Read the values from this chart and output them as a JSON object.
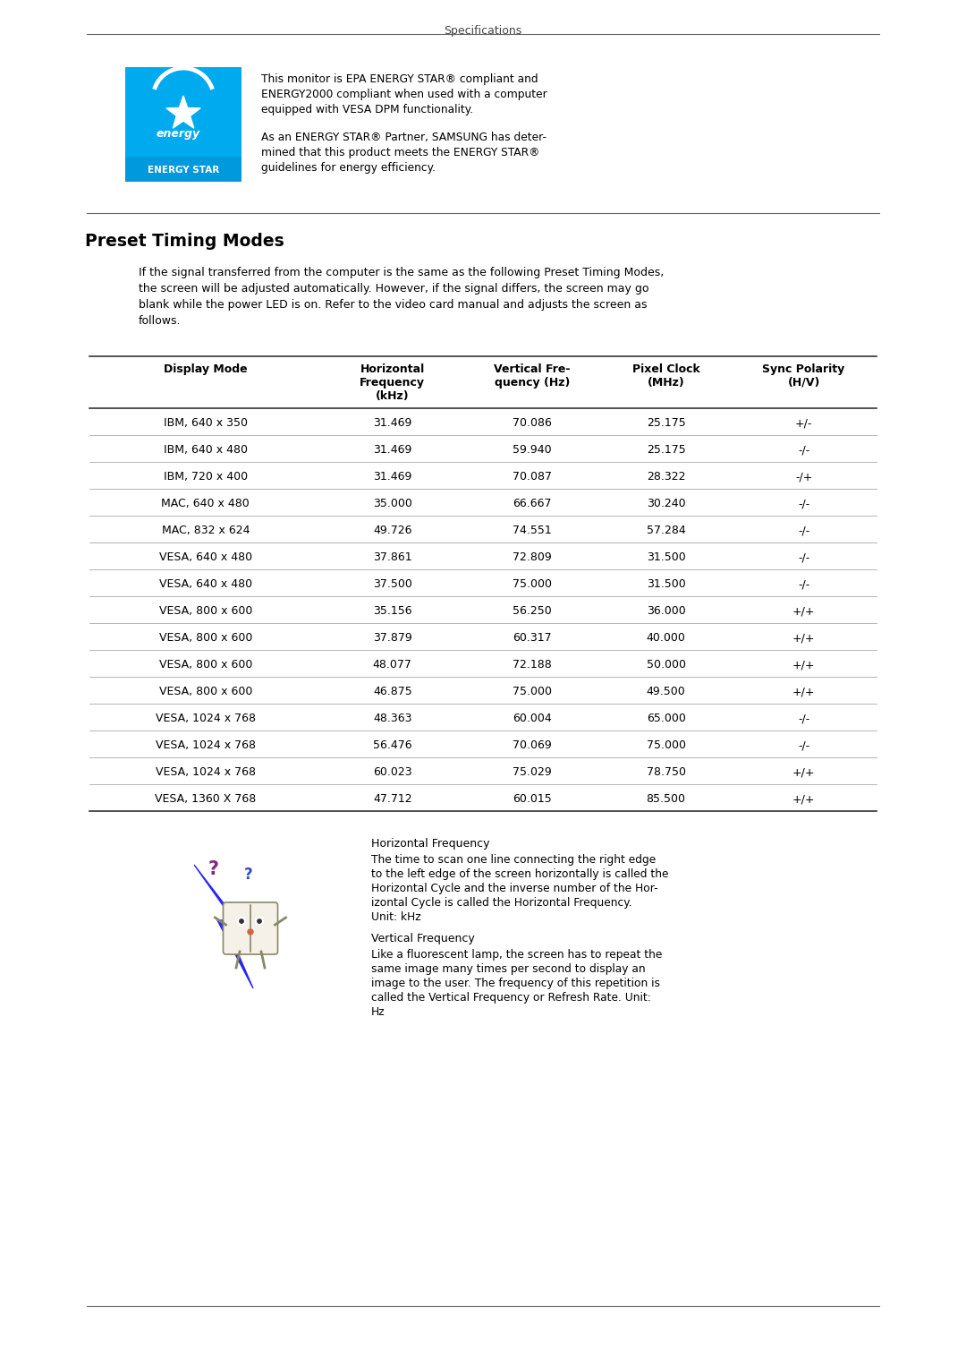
{
  "page_title": "Specifications",
  "bg_color": "#ffffff",
  "text_color": "#000000",
  "energy_star_text1_lines": [
    "This monitor is EPA ENERGY STAR® compliant and",
    "ENERGY2000 compliant when used with a computer",
    "equipped with VESA DPM functionality."
  ],
  "energy_star_text2_lines": [
    "As an ENERGY STAR® Partner, SAMSUNG has deter-",
    "mined that this product meets the ENERGY STAR®",
    "guidelines for energy efficiency."
  ],
  "section_title": "Preset Timing Modes",
  "intro_lines": [
    "If the signal transferred from the computer is the same as the following Preset Timing Modes,",
    "the screen will be adjusted automatically. However, if the signal differs, the screen may go",
    "blank while the power LED is on. Refer to the video card manual and adjusts the screen as",
    "follows."
  ],
  "table_header_cols": [
    [
      "Display Mode"
    ],
    [
      "Horizontal",
      "Frequency",
      "(kHz)"
    ],
    [
      "Vertical Fre-",
      "quency (Hz)"
    ],
    [
      "Pixel Clock",
      "(MHz)"
    ],
    [
      "Sync Polarity",
      "(H/V)"
    ]
  ],
  "table_data": [
    [
      "IBM, 640 x 350",
      "31.469",
      "70.086",
      "25.175",
      "+/-"
    ],
    [
      "IBM, 640 x 480",
      "31.469",
      "59.940",
      "25.175",
      "-/-"
    ],
    [
      "IBM, 720 x 400",
      "31.469",
      "70.087",
      "28.322",
      "-/+"
    ],
    [
      "MAC, 640 x 480",
      "35.000",
      "66.667",
      "30.240",
      "-/-"
    ],
    [
      "MAC, 832 x 624",
      "49.726",
      "74.551",
      "57.284",
      "-/-"
    ],
    [
      "VESA, 640 x 480",
      "37.861",
      "72.809",
      "31.500",
      "-/-"
    ],
    [
      "VESA, 640 x 480",
      "37.500",
      "75.000",
      "31.500",
      "-/-"
    ],
    [
      "VESA, 800 x 600",
      "35.156",
      "56.250",
      "36.000",
      "+/+"
    ],
    [
      "VESA, 800 x 600",
      "37.879",
      "60.317",
      "40.000",
      "+/+"
    ],
    [
      "VESA, 800 x 600",
      "48.077",
      "72.188",
      "50.000",
      "+/+"
    ],
    [
      "VESA, 800 x 600",
      "46.875",
      "75.000",
      "49.500",
      "+/+"
    ],
    [
      "VESA, 1024 x 768",
      "48.363",
      "60.004",
      "65.000",
      "-/-"
    ],
    [
      "VESA, 1024 x 768",
      "56.476",
      "70.069",
      "75.000",
      "-/-"
    ],
    [
      "VESA, 1024 x 768",
      "60.023",
      "75.029",
      "78.750",
      "+/+"
    ],
    [
      "VESA, 1360 X 768",
      "47.712",
      "60.015",
      "85.500",
      "+/+"
    ]
  ],
  "horiz_freq_title": "Horizontal Frequency",
  "horiz_freq_lines": [
    "The time to scan one line connecting the right edge",
    "to the left edge of the screen horizontally is called the",
    "Horizontal Cycle and the inverse number of the Hor-",
    "izontal Cycle is called the Horizontal Frequency.",
    "Unit: kHz"
  ],
  "vert_freq_title": "Vertical Frequency",
  "vert_freq_lines": [
    "Like a fluorescent lamp, the screen has to repeat the",
    "same image many times per second to display an",
    "image to the user. The frequency of this repetition is",
    "called the Vertical Frequency or Refresh Rate. Unit:",
    "Hz"
  ],
  "energy_star_logo_color": "#00AAEE",
  "energy_star_label_color": "#0099DD",
  "bolt_color": "#2222EE",
  "line_color": "#666666",
  "header_line_color": "#333333",
  "row_line_color": "#aaaaaa"
}
